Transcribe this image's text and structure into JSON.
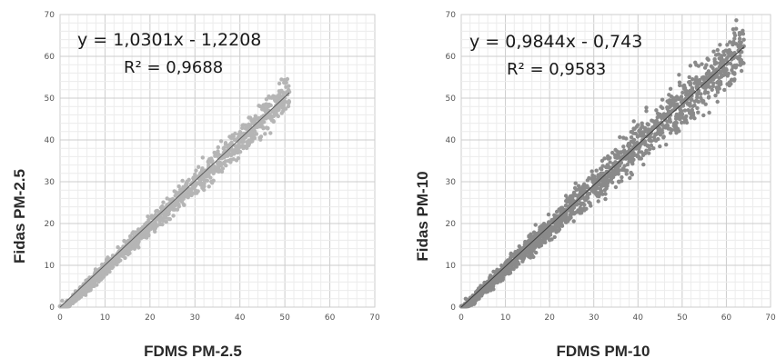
{
  "chart_data": [
    {
      "type": "scatter",
      "xlabel": "FDMS PM-2.5",
      "ylabel": "Fidas PM-2.5",
      "xlim": [
        0,
        70
      ],
      "ylim": [
        0,
        70
      ],
      "xticks": [
        "0",
        "10",
        "20",
        "30",
        "40",
        "50",
        "60",
        "70"
      ],
      "yticks": [
        "0",
        "10",
        "20",
        "30",
        "40",
        "50",
        "60",
        "70"
      ],
      "grid": true,
      "trendline": {
        "slope": 1.0301,
        "intercept": -1.2208
      },
      "equation_label": "y = 1,0301x - 1,2208",
      "r2_label": "R² = 0,9688",
      "point_color": "#b5b5b5",
      "trend_color": "#5a5a5a",
      "data_x_range": [
        0,
        51
      ],
      "series": [
        {
          "x": [
            0.5,
            1,
            2,
            3,
            4,
            5,
            6,
            7,
            8,
            10,
            12,
            14,
            16,
            18,
            20,
            22,
            24,
            26,
            28,
            30,
            32,
            34,
            36,
            38,
            40,
            42,
            44,
            46,
            48,
            50,
            51
          ],
          "y": [
            1.5,
            0.2,
            1.0,
            2.2,
            3.1,
            4.0,
            5.2,
            6.1,
            7.3,
            9.0,
            11.1,
            13.2,
            15.3,
            17.5,
            19.2,
            21.6,
            23.4,
            25.8,
            27.6,
            29.5,
            31.7,
            33.5,
            35.6,
            37.9,
            39.7,
            41.8,
            44.0,
            46.1,
            48.2,
            50.0,
            51.5
          ]
        }
      ]
    },
    {
      "type": "scatter",
      "xlabel": "FDMS PM-10",
      "ylabel": "Fidas PM-10",
      "xlim": [
        0,
        70
      ],
      "ylim": [
        0,
        70
      ],
      "xticks": [
        "0",
        "10",
        "20",
        "30",
        "40",
        "50",
        "60",
        "70"
      ],
      "yticks": [
        "0",
        "10",
        "20",
        "30",
        "40",
        "50",
        "60",
        "70"
      ],
      "grid": true,
      "trendline": {
        "slope": 0.9844,
        "intercept": -0.743
      },
      "equation_label": "y = 0,9844x - 0,743",
      "r2_label": "R² = 0,9583",
      "point_color": "#8a8a8a",
      "trend_color": "#3c3c3c",
      "data_x_range": [
        0,
        64
      ],
      "series": [
        {
          "x": [
            1,
            2,
            3,
            5,
            7,
            9,
            11,
            13,
            15,
            17,
            19,
            21,
            23,
            25,
            27,
            29,
            31,
            33,
            35,
            37,
            39,
            41,
            43,
            45,
            48,
            52,
            56,
            60,
            62,
            63
          ],
          "y": [
            2,
            1.5,
            2.5,
            4.5,
            6.2,
            8.1,
            10.4,
            12.0,
            14.2,
            16.1,
            18.4,
            20.2,
            22.1,
            24.3,
            26.0,
            28.3,
            30.1,
            32.2,
            34.0,
            36.3,
            38.1,
            40.0,
            42.2,
            44.0,
            47.1,
            51.2,
            55.0,
            59.1,
            65.0,
            63.5
          ]
        }
      ]
    }
  ]
}
